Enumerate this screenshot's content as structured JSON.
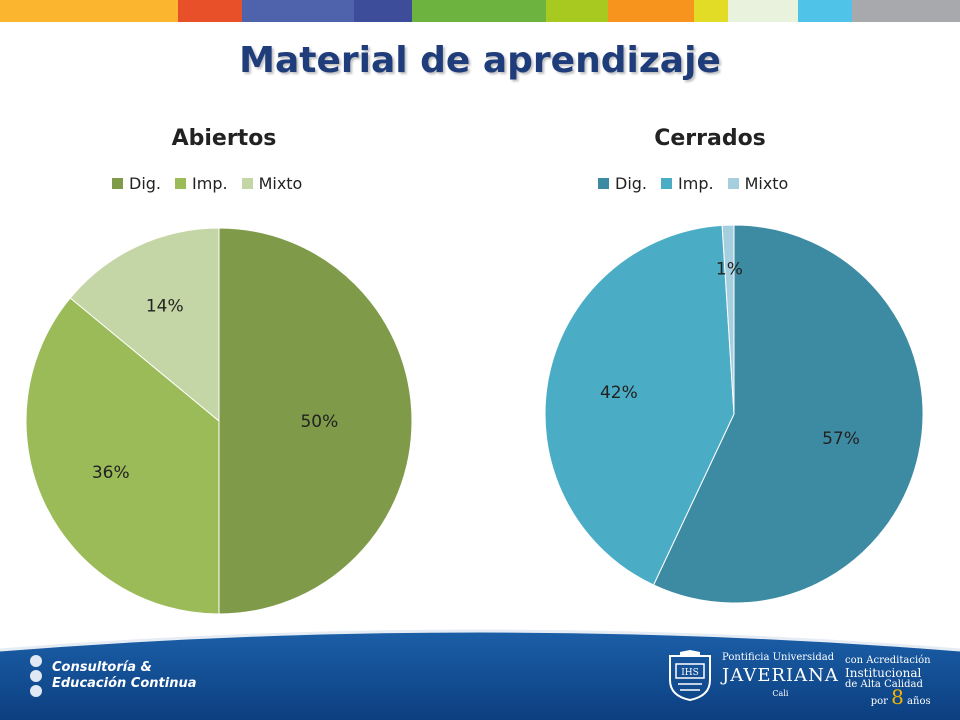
{
  "header": {
    "title": "Material de aprendizaje",
    "stripe_colors": [
      "#fbb52f",
      "#fbb52f",
      "#e8502a",
      "#4e63ab",
      "#3e4d9a",
      "#6cb33f",
      "#a8c91f",
      "#f7941d",
      "#e2dc27",
      "#e9f2dc",
      "#4fc3e8",
      "#a7a9ac"
    ]
  },
  "chart_data": [
    {
      "type": "pie",
      "title": "Abiertos",
      "categories": [
        "Dig.",
        "Imp.",
        "Mixto"
      ],
      "values": [
        50,
        36,
        14
      ],
      "labels": [
        "50%",
        "36%",
        "14%"
      ],
      "colors": [
        "#7f9a48",
        "#9bbb59",
        "#c4d6a6"
      ],
      "legend": "top"
    },
    {
      "type": "pie",
      "title": "Cerrados",
      "categories": [
        "Dig.",
        "Imp.",
        "Mixto"
      ],
      "values": [
        57,
        42,
        1
      ],
      "labels": [
        "57%",
        "42%",
        "1%"
      ],
      "colors": [
        "#3d8ba3",
        "#4bacc6",
        "#a5cfdf"
      ],
      "legend": "top"
    }
  ],
  "footer": {
    "left_logo_line1": "Consultoría &",
    "left_logo_line2": "Educación Continua",
    "university_line1": "Pontificia Universidad",
    "university_line2": "JAVERIANA",
    "university_line3": "Cali",
    "accreditation_line1": "con Acreditación",
    "accreditation_line2": "Institucional",
    "accreditation_line3": "de Alta Calidad",
    "accreditation_line4_pre": "por",
    "accreditation_number": "8",
    "accreditation_line4_post": "años"
  }
}
